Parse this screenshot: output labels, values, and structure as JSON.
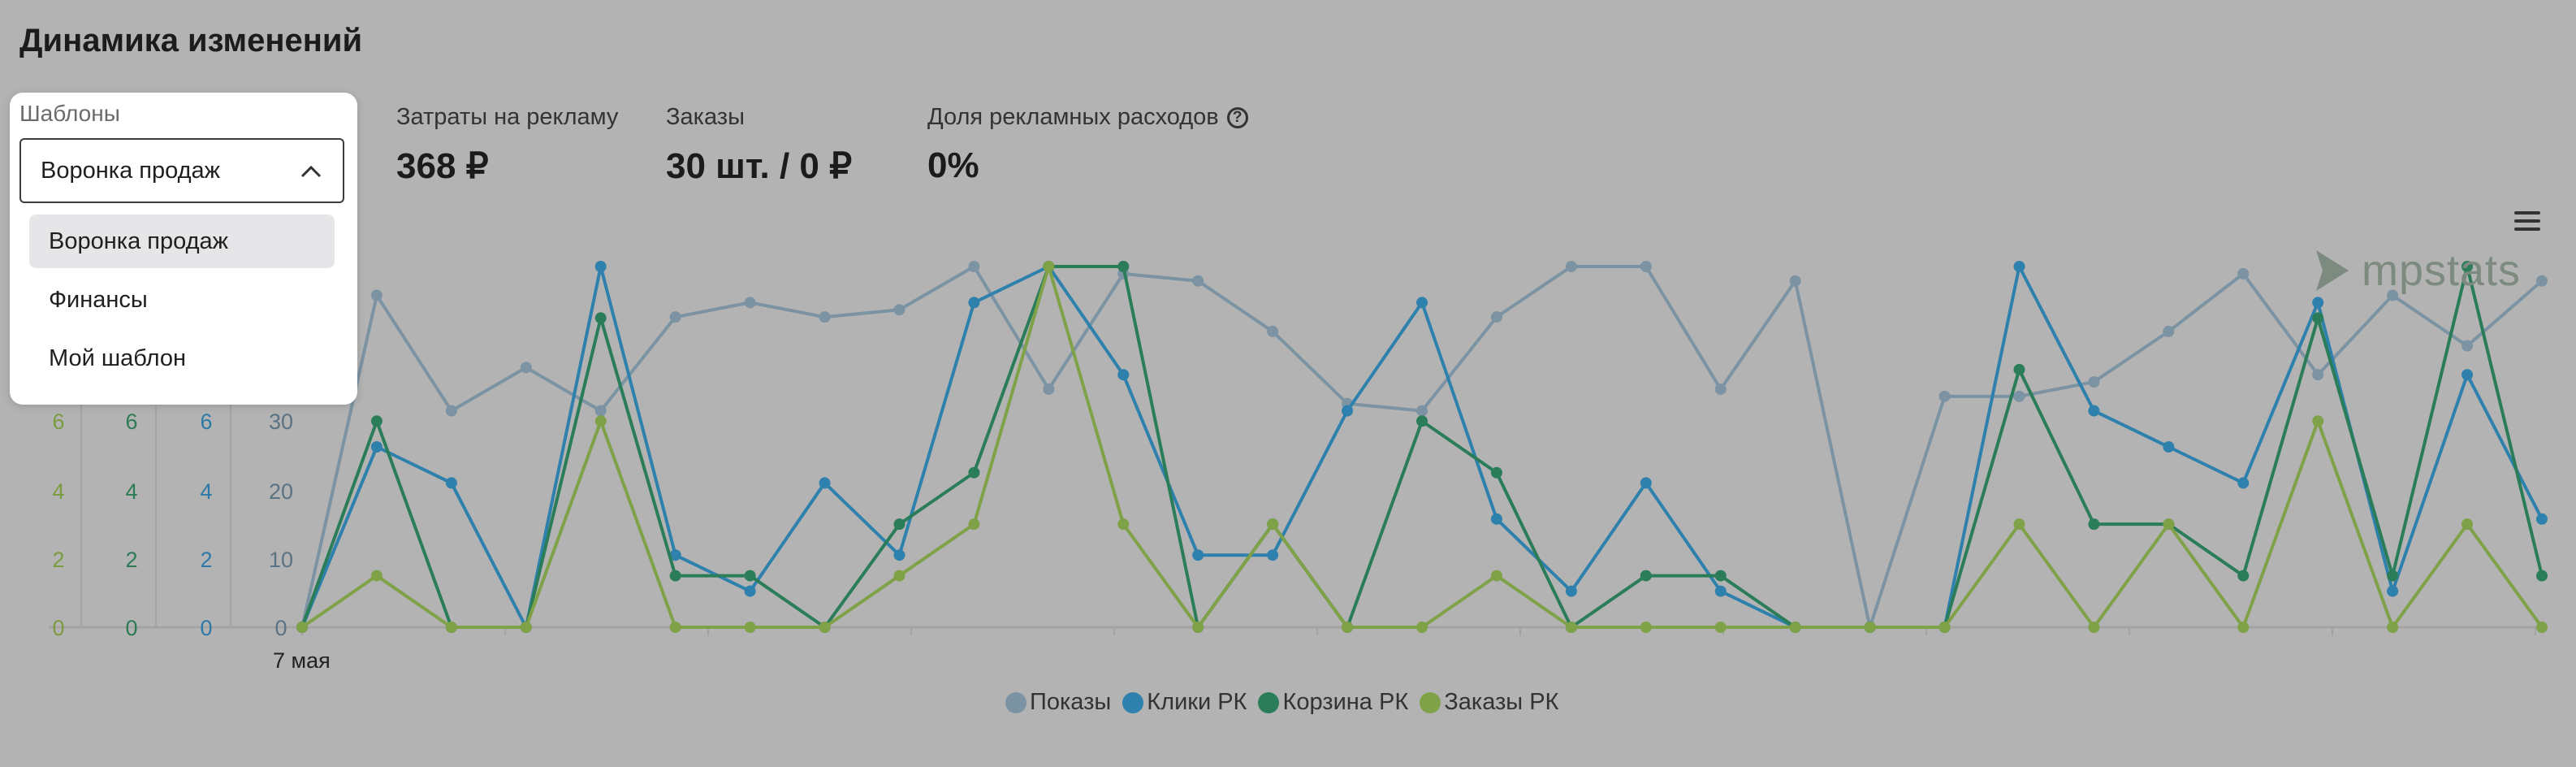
{
  "page": {
    "title": "Динамика изменений"
  },
  "templates": {
    "label": "Шаблоны",
    "selected": "Воронка продаж",
    "options": [
      "Воронка продаж",
      "Финансы",
      "Мой шаблон"
    ]
  },
  "metrics": [
    {
      "label": "Затраты на рекламу",
      "value": "368 ₽"
    },
    {
      "label": "Заказы",
      "value": "30 шт. / 0 ₽"
    },
    {
      "label": "Доля рекламных расходов",
      "value": "0%",
      "help_icon": "question-circle-icon"
    }
  ],
  "logo": {
    "text": "mpstats"
  },
  "icons": {
    "menu": "hamburger-menu-icon",
    "logo_mark": "play-triangle-icon",
    "dropdown": "chevron-up-icon"
  },
  "chart_data": {
    "type": "line",
    "x_start_label": "7 мая",
    "y_axes": [
      {
        "ticks": [
          "0",
          "2",
          "4",
          "6"
        ],
        "color": "#7a9b3f"
      },
      {
        "ticks": [
          "0",
          "2",
          "4",
          "6"
        ],
        "color": "#2e7a55"
      },
      {
        "ticks": [
          "0",
          "2",
          "4",
          "6"
        ],
        "color": "#2b79a6"
      },
      {
        "ticks": [
          "0",
          "10",
          "20",
          "30"
        ],
        "color": "#5b7282"
      }
    ],
    "series": [
      {
        "name": "Показы",
        "color": "#7b93a3",
        "values": [
          0,
          46,
          30,
          36,
          30,
          43,
          45,
          43,
          44,
          50,
          33,
          49,
          48,
          41,
          31,
          30,
          43,
          50,
          50,
          33,
          48,
          0,
          32,
          32,
          34,
          41,
          49,
          35,
          46,
          39,
          48
        ]
      },
      {
        "name": "Клики РК",
        "color": "#2e80ad",
        "values": [
          0,
          5,
          4,
          0,
          10,
          2,
          1,
          4,
          2,
          9,
          10,
          7,
          2,
          2,
          6,
          9,
          3,
          1,
          4,
          1,
          0,
          0,
          0,
          10,
          6,
          5,
          4,
          9,
          1,
          7,
          3
        ]
      },
      {
        "name": "Корзина РК",
        "color": "#2a7d58",
        "values": [
          0,
          4,
          0,
          0,
          6,
          1,
          1,
          0,
          2,
          3,
          7,
          7,
          0,
          2,
          0,
          4,
          3,
          0,
          1,
          1,
          0,
          0,
          0,
          5,
          2,
          2,
          1,
          6,
          1,
          7,
          1
        ]
      },
      {
        "name": "Заказы РК",
        "color": "#7fa148",
        "values": [
          0,
          1,
          0,
          0,
          4,
          0,
          0,
          0,
          1,
          2,
          7,
          2,
          0,
          2,
          0,
          0,
          1,
          0,
          0,
          0,
          0,
          0,
          0,
          2,
          0,
          2,
          0,
          4,
          0,
          2,
          0
        ]
      }
    ]
  }
}
